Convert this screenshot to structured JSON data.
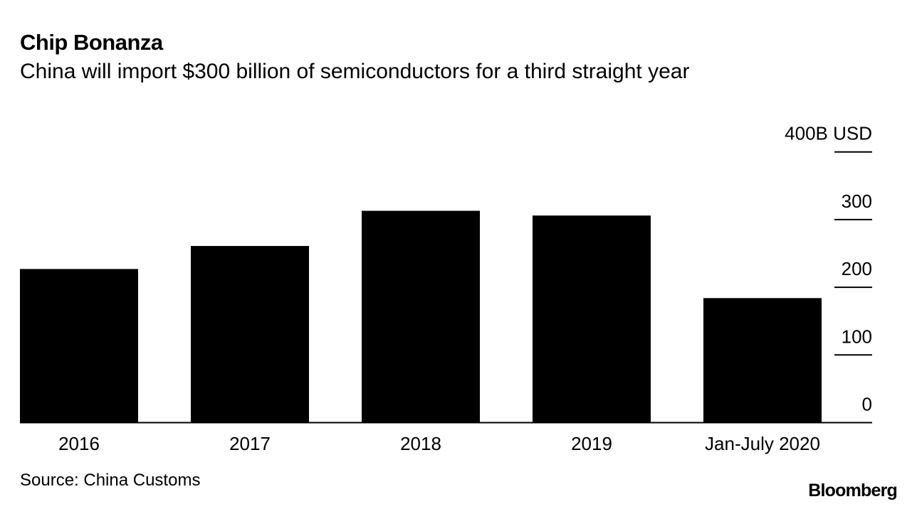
{
  "header": {
    "title": "Chip Bonanza",
    "subtitle": "China will import $300 billion of semiconductors for a third straight year"
  },
  "footer": {
    "source": "Source: China Customs",
    "logo": "Bloomberg"
  },
  "chart_data": {
    "type": "bar",
    "title": "Chip Bonanza",
    "subtitle": "China will import $300 billion of semiconductors for a third straight year",
    "categories": [
      "2016",
      "2017",
      "2018",
      "2019",
      "Jan-July 2020"
    ],
    "values": [
      227,
      261,
      313,
      306,
      184
    ],
    "unit": "B USD",
    "ylim": [
      0,
      400
    ],
    "yticks": [
      0,
      100,
      200,
      300,
      400
    ],
    "ytick_labels": [
      "0",
      "100",
      "200",
      "300",
      "400B USD"
    ],
    "yaxis_position": "right",
    "grid": false,
    "bar_color": "#000000"
  }
}
